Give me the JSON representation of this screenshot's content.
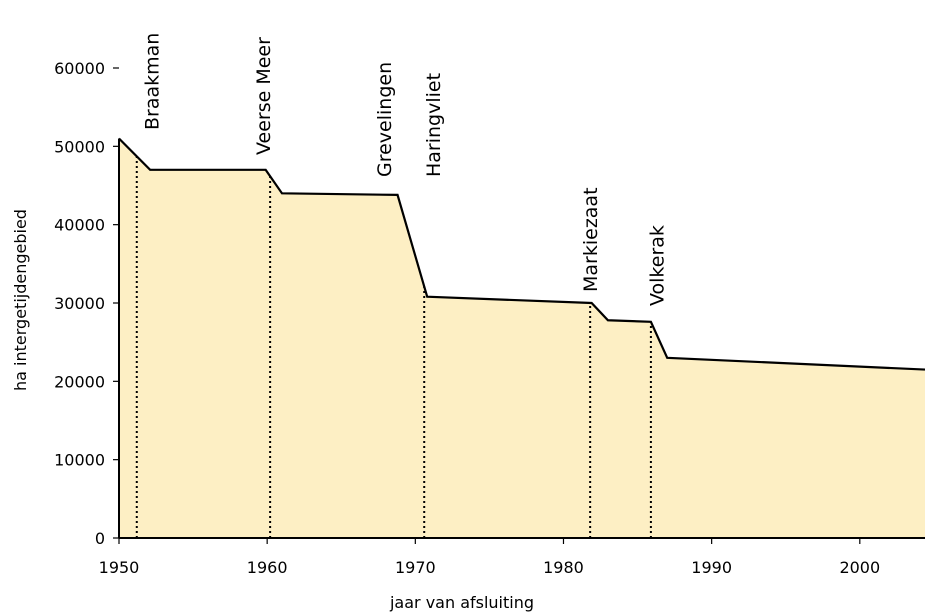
{
  "chart_data": {
    "type": "area",
    "xlabel": "jaar van afsluiting",
    "ylabel": "ha intergetijdengebied",
    "x": [
      1950,
      1952.1,
      1959.9,
      1961.0,
      1968.8,
      1970.8,
      1981.9,
      1983.0,
      1985.9,
      1987.0,
      2004.4
    ],
    "values": [
      51000,
      47000,
      47000,
      44000,
      43800,
      30800,
      30000,
      27800,
      27600,
      23000,
      21500
    ],
    "color": "#fdefc4",
    "line_color": "#000000",
    "xlim": [
      1950,
      2004.4
    ],
    "ylim": [
      0,
      60000
    ],
    "xticks": [
      1950,
      1960,
      1970,
      1980,
      1990,
      2000
    ],
    "yticks": [
      0,
      10000,
      20000,
      30000,
      40000,
      50000,
      60000
    ],
    "annotations": [
      {
        "label": "Braakman",
        "x": 1951.2,
        "dotted": true
      },
      {
        "label": "Veerse Meer",
        "x": 1960.2,
        "dotted": true
      },
      {
        "label": "Grevelingen",
        "x": 1967.9,
        "dotted": false
      },
      {
        "label": "Haringvliet",
        "x": 1970.6,
        "dotted": true
      },
      {
        "label": "Markiezaat",
        "x": 1981.8,
        "dotted": true
      },
      {
        "label": "Volkerak",
        "x": 1985.9,
        "dotted": true
      }
    ]
  }
}
